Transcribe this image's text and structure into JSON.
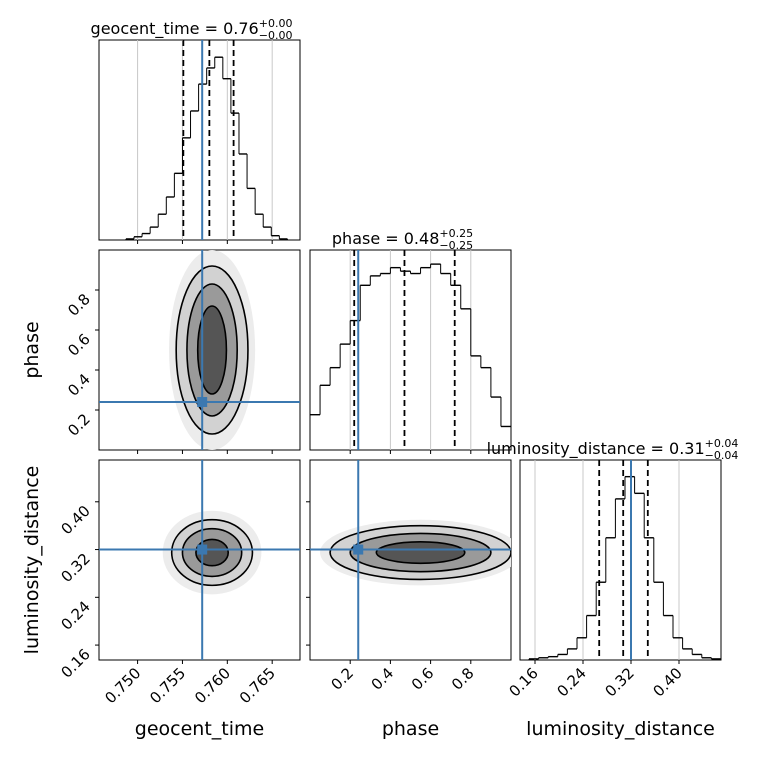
{
  "chart_data": {
    "type": "corner",
    "grid": true,
    "truth_color": "#3b78b0",
    "line_color": "#000000",
    "shades": [
      "#ececec",
      "#d2d2d2",
      "#9a9a9a",
      "#555555"
    ],
    "params": [
      {
        "name": "geocent_time",
        "title": "geocent_time = 0.76",
        "title_plus": "+0.00",
        "title_minus": "−0.00",
        "lim": [
          0.7457,
          0.7681
        ],
        "ticks": [
          {
            "value": 0.75,
            "label": "0.750"
          },
          0.755,
          {
            "value": 0.76,
            "label": "0.760"
          },
          0.765
        ],
        "truth": 0.7572,
        "quantiles": [
          0.7551,
          0.758,
          0.7607
        ],
        "bins": [
          0.7487,
          0.7496,
          0.7505,
          0.7514,
          0.7523,
          0.7532,
          0.7541,
          0.755,
          0.7559,
          0.7568,
          0.7577,
          0.7586,
          0.7595,
          0.7604,
          0.7613,
          0.7622,
          0.7631,
          0.764,
          0.7649,
          0.7658,
          0.7667
        ],
        "counts": [
          1,
          3,
          6,
          12,
          24,
          40,
          62,
          95,
          120,
          145,
          160,
          170,
          150,
          118,
          80,
          48,
          24,
          12,
          4,
          1
        ],
        "count_lim": [
          0,
          186
        ]
      },
      {
        "name": "phase",
        "title": "phase = 0.48",
        "title_plus": "+0.25",
        "title_minus": "−0.25",
        "lim": [
          0,
          1
        ],
        "ticks": [
          0.2,
          0.4,
          0.6,
          0.8
        ],
        "truth": 0.24,
        "quantiles": [
          0.22,
          0.47,
          0.72
        ],
        "bins": [
          0,
          0.05,
          0.1,
          0.15,
          0.2,
          0.25,
          0.3,
          0.35,
          0.4,
          0.45,
          0.5,
          0.55,
          0.6,
          0.65,
          0.7,
          0.75,
          0.8,
          0.85,
          0.9,
          0.95,
          1
        ],
        "counts": [
          30,
          55,
          70,
          90,
          110,
          140,
          148,
          150,
          155,
          152,
          150,
          155,
          158,
          150,
          140,
          120,
          80,
          70,
          45,
          20
        ],
        "count_lim": [
          0,
          170
        ]
      },
      {
        "name": "luminosity_distance",
        "title": "luminosity_distance = 0.31",
        "title_plus": "+0.04",
        "title_minus": "−0.04",
        "lim": [
          0.135,
          0.47
        ],
        "ticks": [
          0.16,
          0.24,
          0.32,
          {
            "value": 0.4,
            "label": "0.40"
          }
        ],
        "truth": 0.32,
        "quantiles": [
          0.267,
          0.307,
          0.348
        ],
        "bins": [
          0.15,
          0.166,
          0.182,
          0.198,
          0.214,
          0.23,
          0.246,
          0.262,
          0.278,
          0.294,
          0.31,
          0.326,
          0.342,
          0.358,
          0.374,
          0.39,
          0.406,
          0.422,
          0.438,
          0.454,
          0.47
        ],
        "counts": [
          1,
          2,
          3,
          5,
          10,
          20,
          40,
          70,
          110,
          145,
          165,
          150,
          110,
          70,
          40,
          20,
          10,
          5,
          2,
          1
        ],
        "count_lim": [
          0,
          180
        ]
      }
    ],
    "pairs": [
      {
        "x": 0,
        "y": 1,
        "center": [
          0.7583,
          0.5
        ],
        "cloud": [
          0.0048,
          0.5
        ],
        "levels": [
          [
            0.004,
            0.42
          ],
          [
            0.0028,
            0.33
          ],
          [
            0.0016,
            0.22
          ]
        ]
      },
      {
        "x": 0,
        "y": 2,
        "center": [
          0.7583,
          0.315
        ],
        "cloud": [
          0.0055,
          0.07
        ],
        "levels": [
          [
            0.0045,
            0.055
          ],
          [
            0.0033,
            0.04
          ],
          [
            0.0018,
            0.022
          ]
        ]
      },
      {
        "x": 1,
        "y": 2,
        "center": [
          0.55,
          0.315
        ],
        "cloud": [
          0.5,
          0.055
        ],
        "levels": [
          [
            0.45,
            0.045
          ],
          [
            0.35,
            0.032
          ],
          [
            0.22,
            0.018
          ]
        ]
      }
    ]
  }
}
